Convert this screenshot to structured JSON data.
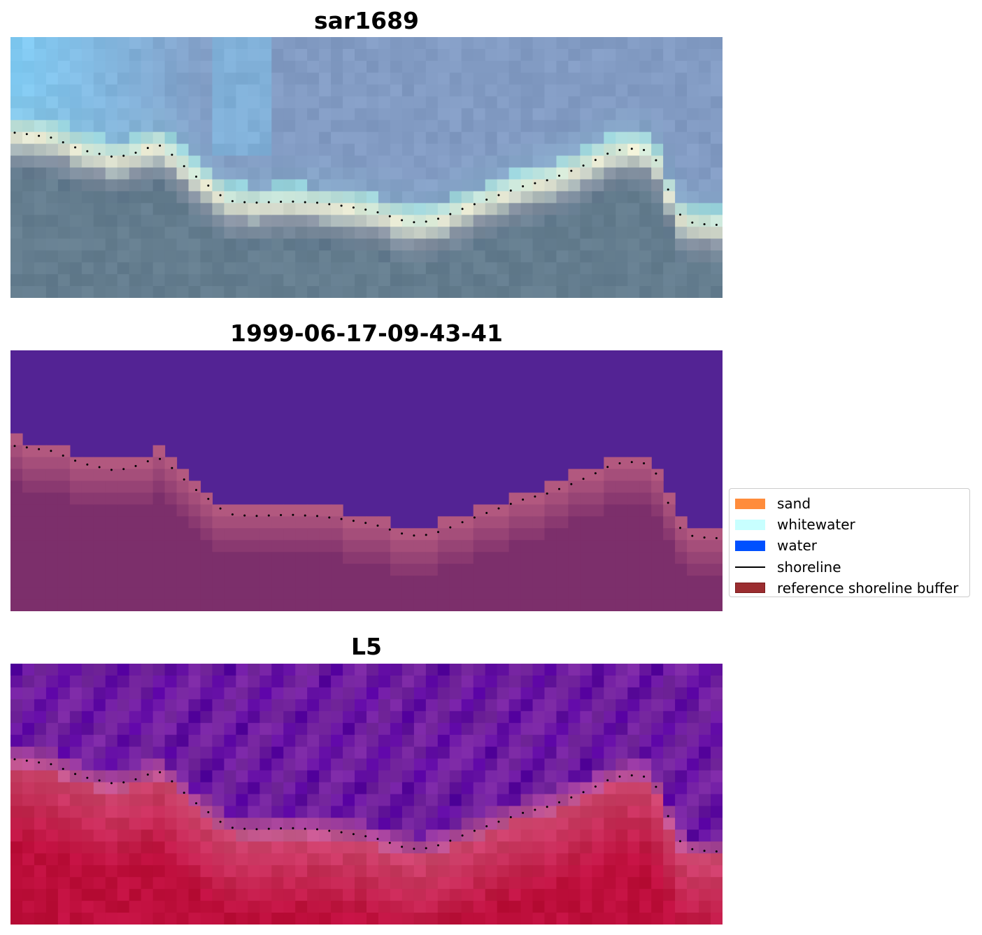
{
  "panels": [
    {
      "title": "sar1689",
      "kind": "rgb-composite"
    },
    {
      "title": "1999-06-17-09-43-41",
      "kind": "classification"
    },
    {
      "title": "L5",
      "kind": "index"
    }
  ],
  "legend": {
    "items": [
      {
        "label": "sand",
        "color": "#ff8c3c",
        "type": "patch"
      },
      {
        "label": "whitewater",
        "color": "#c8ffff",
        "type": "patch"
      },
      {
        "label": "water",
        "color": "#0050ff",
        "type": "patch"
      },
      {
        "label": "shoreline",
        "color": "#000000",
        "type": "line"
      },
      {
        "label": "reference shoreline buffer",
        "color": "#9b2d30",
        "edge": "#7a1c1c",
        "type": "patch"
      }
    ]
  },
  "colors": {
    "classification_water": "#532394",
    "classification_sand": "#7c2f6b",
    "classification_buffer": "#b2587f",
    "shoreline_dots": "#000000"
  }
}
